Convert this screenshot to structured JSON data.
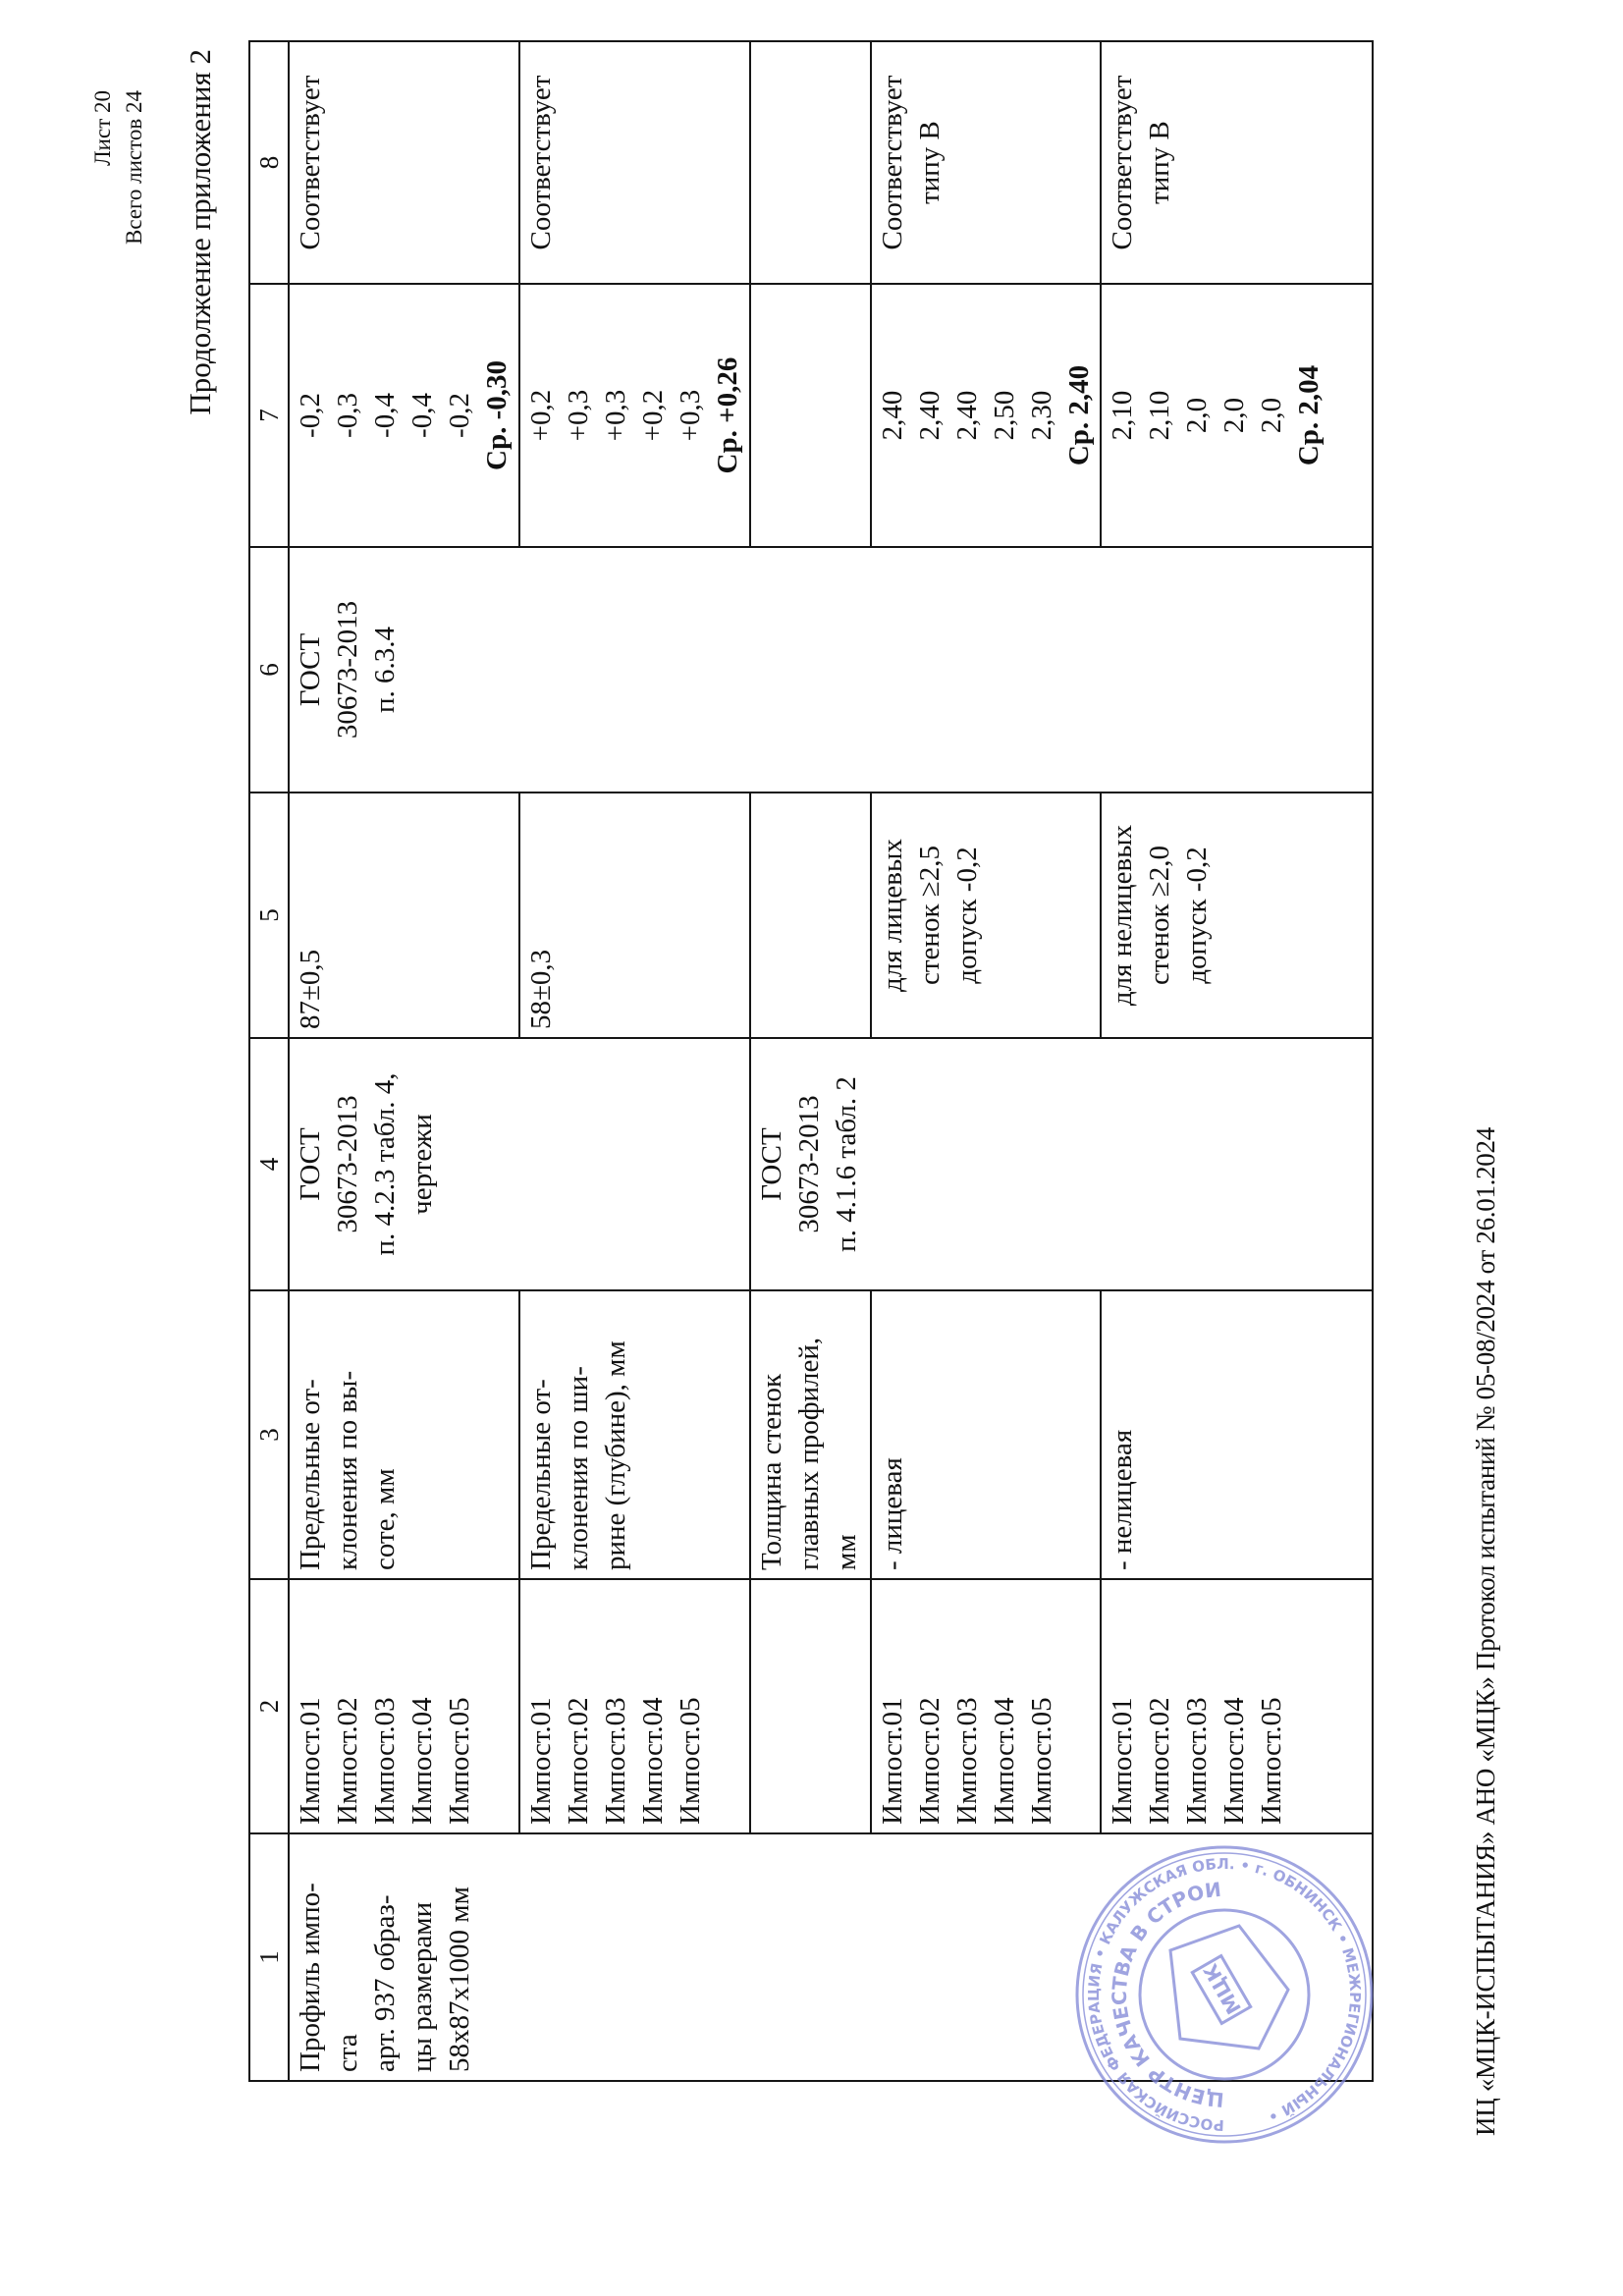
{
  "header": {
    "sheet": "Лист 20",
    "total_sheets": "Всего листов 24",
    "continuation": "Продолжение приложения 2"
  },
  "table": {
    "column_numbers": [
      "1",
      "2",
      "3",
      "4",
      "5",
      "6",
      "7",
      "8"
    ],
    "sample": "Профиль  импо-\nста\nарт. 937 образ-\nцы размерами\n58x87x1000 мм",
    "method_std": "ГОСТ\n30673-2013\nп. 6.3.4",
    "rows": [
      {
        "specimens": "Импост.01\nИмпост.02\nИмпост.03\nИмпост.04\nИмпост.05",
        "parameter": "Предельные от-\nклонения  по вы-\nсоте, мм",
        "normative_doc": "ГОСТ\n30673-2013\nп. 4.2.3 табл. 4,\nчертежи",
        "requirement": "87±0,5",
        "results": "-0,2\n-0,3\n-0,4\n-0,4\n-0,2",
        "average": "Ср. -0,30",
        "conclusion": "Соответствует"
      },
      {
        "specimens": "Импост.01\nИмпост.02\nИмпост.03\nИмпост.04\nИмпост.05",
        "parameter": "Предельные от-\nклонения  по ши-\nрине (глубине), мм",
        "requirement": "58±0,3",
        "results": "+0,2\n+0,3\n+0,3\n+0,2\n+0,3",
        "average": "Ср. +0,26",
        "conclusion": "Соответствует"
      },
      {
        "specimens": "",
        "parameter": "Толщина  стенок\nглавных профилей,\nмм",
        "normative_doc": "ГОСТ\n30673-2013\nп. 4.1.6 табл. 2",
        "requirement": "",
        "results": "",
        "conclusion": ""
      },
      {
        "specimens": "Импост.01\nИмпост.02\nИмпост.03\nИмпост.04\nИмпост.05",
        "parameter": "- лицевая",
        "requirement": "для лицевых\nстенок ≥2,5\nдопуск -0,2",
        "results": "2,40\n2,40\n2,40\n2,50\n2,30",
        "average": "Ср. 2,40",
        "conclusion": "Соответствует\nтипу В"
      },
      {
        "specimens": "Импост.01\nИмпост.02\nИмпост.03\nИмпост.04\nИмпост.05",
        "parameter": "- нелицевая",
        "requirement": "для нелицевых\nстенок ≥2,0\nдопуск -0,2",
        "results": "2,10\n2,10\n2,0\n2,0\n2,0",
        "average": "Ср. 2,04",
        "conclusion": "Соответствует\nтипу В"
      }
    ]
  },
  "stamp": {
    "outer_text": "РОССИЙСКАЯ ФЕДЕРАЦИЯ • КАЛУЖСКАЯ ОБЛ. • г. ОБНИНСК • МЕЖРЕГИОНАЛЬНЫЙ •",
    "inner_text": "ЦЕНТР КАЧЕСТВА В СТРОИТЕЛЬСТВЕ",
    "logo_text": "МЦК",
    "color": "#7f86d6"
  },
  "footer": {
    "text": "ИЦ «МЦК-ИСПЫТАНИЯ» АНО «МЦК» Протокол испытаний № 05-08/2024 от 26.01.2024"
  }
}
